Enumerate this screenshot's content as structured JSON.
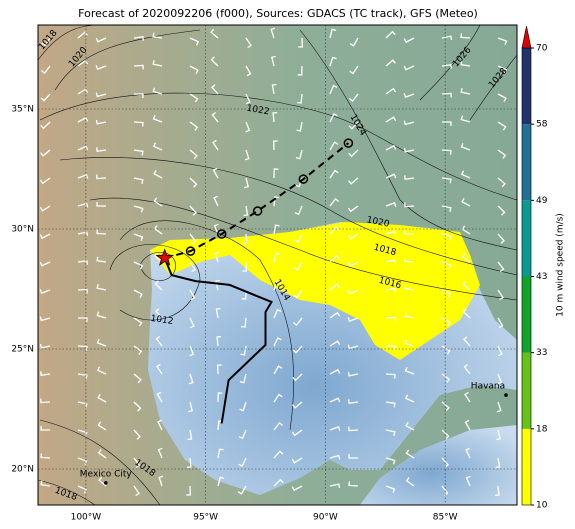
{
  "title": "Forecast of 2020092206 (f000), Sources: GDACS (TC track), GFS (Meteo)",
  "map": {
    "xlim": [
      -102,
      -82
    ],
    "ylim": [
      18.5,
      38.5
    ],
    "lon_ticks": [
      {
        "value": -100,
        "label": "100°W"
      },
      {
        "value": -95,
        "label": "95°W"
      },
      {
        "value": -90,
        "label": "90°W"
      },
      {
        "value": -85,
        "label": "85°W"
      }
    ],
    "lat_ticks": [
      {
        "value": 35,
        "label": "35°N"
      },
      {
        "value": 30,
        "label": "30°N"
      },
      {
        "value": 25,
        "label": "25°N"
      },
      {
        "value": 20,
        "label": "20°N"
      }
    ],
    "grid": true,
    "isobar_labels": [
      1018,
      1020,
      1022,
      1024,
      1026,
      1028,
      1020,
      1018,
      1016,
      1014,
      1012,
      1018,
      1018
    ],
    "storm": {
      "current": {
        "lon": -96.71,
        "lat": 28.79
      },
      "forecast": {
        "lon": [
          -96.71,
          -95.63,
          -94.33,
          -92.83,
          -90.92,
          -89.04
        ],
        "lat": [
          28.79,
          29.08,
          29.79,
          30.75,
          32.08,
          33.58
        ]
      },
      "past": {
        "lon": [
          -94.33,
          -94.04,
          -92.5,
          -92.5,
          -92.25,
          -94.0,
          -95.42,
          -96.42,
          -96.71
        ],
        "lat": [
          21.9,
          23.7,
          25.17,
          26.54,
          26.96,
          27.67,
          27.83,
          28.08,
          28.79
        ]
      }
    },
    "cities": [
      {
        "name": "Havana",
        "lon": -82.46,
        "lat": 23.08
      },
      {
        "name": "Mexico City",
        "lon": -99.17,
        "lat": 19.42
      }
    ]
  },
  "colorbar": {
    "label": "10 m wind speed (m/s)",
    "ticks": [
      10,
      18,
      33,
      43,
      49,
      58,
      70
    ],
    "colors": [
      "#ffff00",
      "#66c21a",
      "#12a32a",
      "#0a9a96",
      "#236f98",
      "#22336b"
    ],
    "extend_color": "#e00000"
  }
}
